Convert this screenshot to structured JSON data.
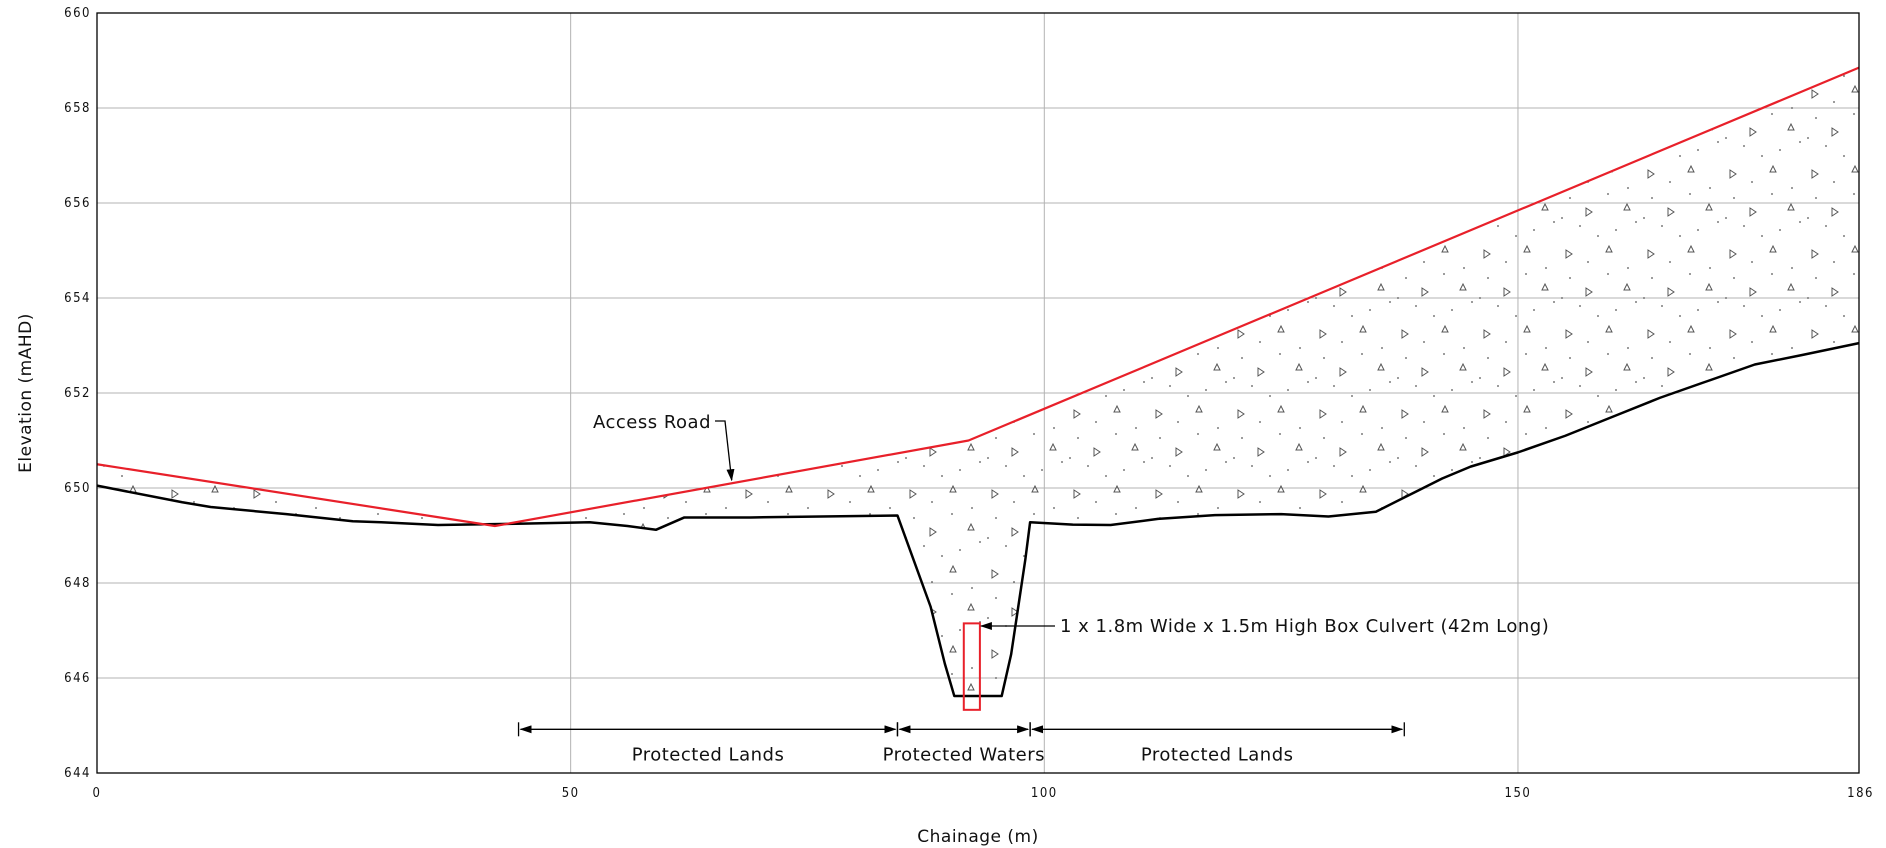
{
  "chart_data": {
    "type": "line",
    "xlabel": "Chainage (m)",
    "ylabel": "Elevation (mAHD)",
    "xlim": [
      0,
      186
    ],
    "ylim": [
      644,
      660
    ],
    "x_ticks": [
      0,
      50,
      100,
      150,
      186
    ],
    "y_ticks": [
      644,
      646,
      648,
      650,
      652,
      654,
      656,
      658,
      660
    ],
    "grid": true,
    "series": [
      {
        "name": "Access Road",
        "color": "#e8202a",
        "points": [
          [
            0,
            650.5
          ],
          [
            42,
            649.2
          ],
          [
            92,
            651.0
          ],
          [
            186,
            658.85
          ]
        ]
      },
      {
        "name": "",
        "color": "#000000",
        "points": [
          [
            0,
            650.05
          ],
          [
            9,
            649.7
          ],
          [
            12,
            649.6
          ],
          [
            20,
            649.45
          ],
          [
            27,
            649.3
          ],
          [
            30,
            649.28
          ],
          [
            36,
            649.22
          ],
          [
            45,
            649.25
          ],
          [
            52,
            649.28
          ],
          [
            56,
            649.2
          ],
          [
            59,
            649.12
          ],
          [
            62,
            649.38
          ],
          [
            69,
            649.38
          ],
          [
            84.5,
            649.42
          ],
          [
            88,
            647.5
          ],
          [
            89.5,
            646.3
          ],
          [
            90.5,
            645.62
          ],
          [
            95.5,
            645.62
          ],
          [
            96.5,
            646.5
          ],
          [
            98,
            648.5
          ],
          [
            98.5,
            649.28
          ],
          [
            103,
            649.23
          ],
          [
            107,
            649.22
          ],
          [
            112,
            649.35
          ],
          [
            118,
            649.43
          ],
          [
            125,
            649.45
          ],
          [
            130,
            649.4
          ],
          [
            135,
            649.5
          ],
          [
            139,
            649.9
          ],
          [
            142,
            650.2
          ],
          [
            145,
            650.45
          ],
          [
            150,
            650.75
          ],
          [
            155,
            651.1
          ],
          [
            160,
            651.5
          ],
          [
            165,
            651.9
          ],
          [
            170,
            652.25
          ],
          [
            175,
            652.6
          ],
          [
            180,
            652.8
          ],
          [
            186,
            653.05
          ]
        ]
      }
    ],
    "annotations": [
      {
        "text": "Access Road"
      },
      {
        "text": "1 x 1.8m Wide x 1.5m High Box Culvert (42m Long)"
      }
    ],
    "culvert": {
      "x_start": 91.5,
      "x_end": 93.2,
      "y_bottom": 645.33,
      "y_top": 647.15,
      "color": "#e8202a"
    },
    "spans": [
      {
        "label": "Protected Lands",
        "x_start": 44.5,
        "x_end": 84.5
      },
      {
        "label": "Protected Waters",
        "x_start": 84.5,
        "x_end": 98.5
      },
      {
        "label": "Protected Lands",
        "x_start": 98.5,
        "x_end": 138
      }
    ],
    "span_y": 644.92
  }
}
